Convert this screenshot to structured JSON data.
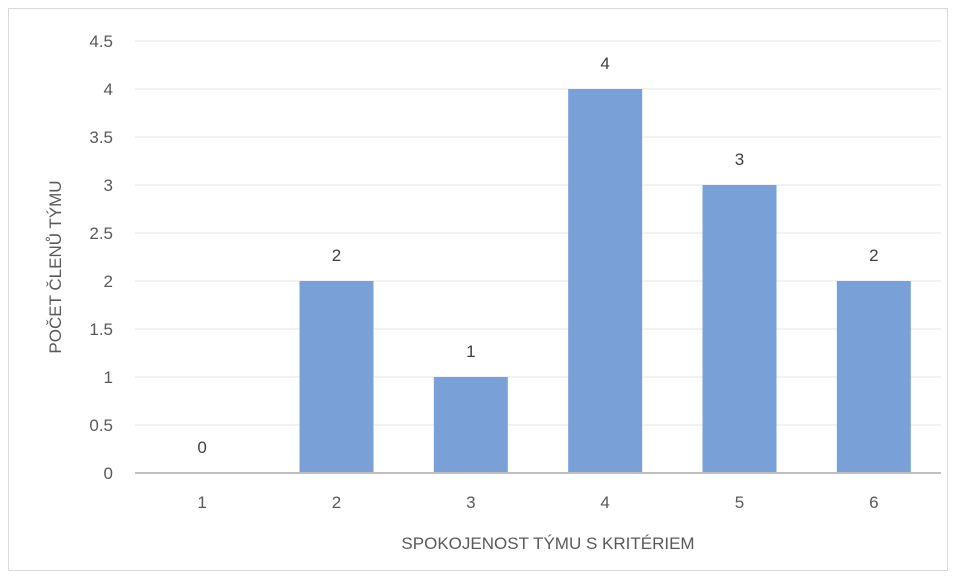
{
  "chart_data": {
    "type": "bar",
    "title": "",
    "xlabel": "SPOKOJENOST TÝMU S KRITÉRIEM",
    "ylabel": "POČET ČLENŮ TÝMU",
    "categories": [
      "1",
      "2",
      "3",
      "4",
      "5",
      "6"
    ],
    "values": [
      0,
      2,
      1,
      4,
      3,
      2
    ],
    "data_labels": [
      "0",
      "2",
      "1",
      "4",
      "3",
      "2"
    ],
    "yticks": [
      "0",
      "0.5",
      "1",
      "1.5",
      "2",
      "2.5",
      "3",
      "3.5",
      "4",
      "4.5"
    ],
    "ylim": [
      0,
      4.5
    ],
    "grid": true,
    "legend": "none",
    "bar_color": "#7aa0d8",
    "gridline_color": "#e6e6e6",
    "axis_color": "#bfbfbf"
  }
}
